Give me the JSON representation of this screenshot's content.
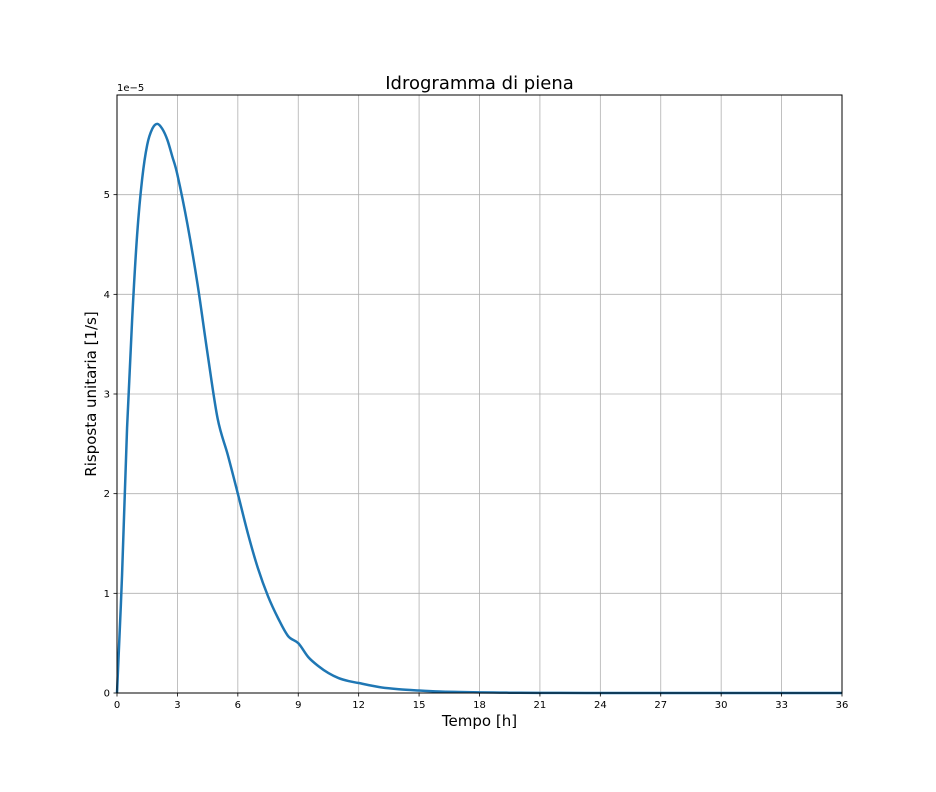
{
  "chart_data": {
    "type": "line",
    "title": "Idrogramma di piena",
    "xlabel": "Tempo [h]",
    "ylabel": "Risposta unitaria [1/s]",
    "y_offset_label": "1e−5",
    "xlim": [
      0,
      36
    ],
    "ylim": [
      0,
      6.0
    ],
    "x_ticks": [
      0,
      3,
      6,
      9,
      12,
      15,
      18,
      21,
      24,
      27,
      30,
      33,
      36
    ],
    "x_tick_labels": [
      "0",
      "3",
      "6",
      "9",
      "12",
      "15",
      "18",
      "21",
      "24",
      "27",
      "30",
      "33",
      "36"
    ],
    "y_ticks": [
      0,
      1,
      2,
      3,
      4,
      5
    ],
    "y_tick_labels": [
      "0",
      "1",
      "2",
      "3",
      "4",
      "5"
    ],
    "grid": true,
    "colors": {
      "line": "#1f77b4",
      "grid": "#b0b0b0",
      "axes": "#000000"
    },
    "series": [
      {
        "x": [
          0,
          0.25,
          0.5,
          0.75,
          1,
          1.25,
          1.5,
          1.75,
          2,
          2.25,
          2.5,
          2.75,
          3,
          3.5,
          4,
          4.5,
          5,
          5.5,
          6,
          6.5,
          7,
          7.5,
          8,
          8.5,
          9,
          9.5,
          10,
          10.5,
          11,
          11.5,
          12,
          13,
          14,
          15,
          16,
          17,
          18,
          19,
          20,
          21,
          22,
          24,
          26,
          28,
          30,
          32,
          34,
          36
        ],
        "y": [
          0,
          1.18,
          2.66,
          3.74,
          4.6,
          5.16,
          5.5,
          5.66,
          5.71,
          5.66,
          5.55,
          5.38,
          5.2,
          4.7,
          4.1,
          3.4,
          2.75,
          2.39,
          2.0,
          1.6,
          1.25,
          0.97,
          0.75,
          0.57,
          0.5,
          0.36,
          0.27,
          0.2,
          0.15,
          0.12,
          0.1,
          0.06,
          0.038,
          0.025,
          0.015,
          0.01,
          0.006,
          0.004,
          0.002,
          0.001,
          0.0007,
          0.0003,
          0.0001,
          5e-05,
          2e-05,
          1e-05,
          0,
          0
        ]
      }
    ]
  }
}
